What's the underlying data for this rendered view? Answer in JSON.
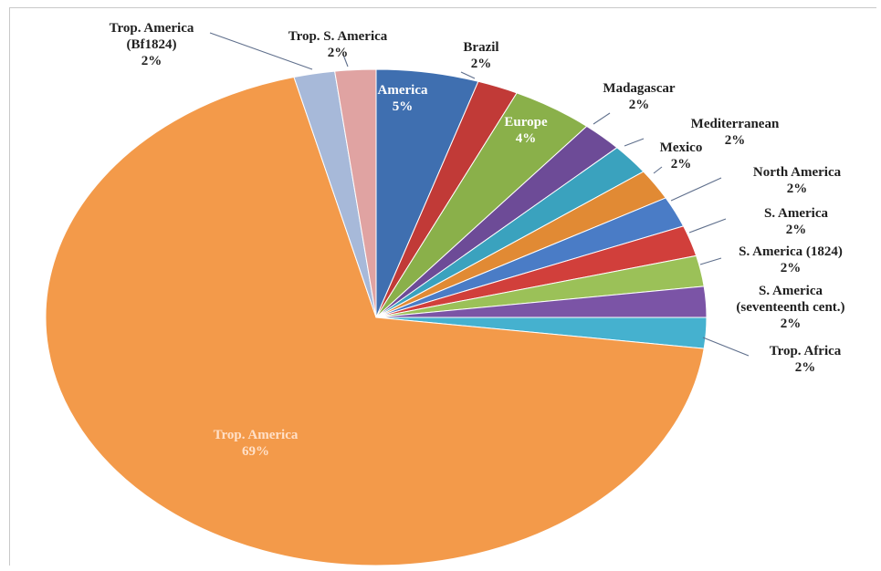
{
  "chart_data": {
    "type": "pie",
    "title": "",
    "slices": [
      {
        "label": "America",
        "value": 5,
        "display": "5%",
        "color": "#3f6fb0",
        "label_lines": [
          "America",
          "5%"
        ],
        "label_inside": true
      },
      {
        "label": "Brazil",
        "value": 2,
        "display": "2%",
        "color": "#c13a37",
        "label_lines": [
          "Brazil",
          "2%"
        ]
      },
      {
        "label": "Europe",
        "value": 4,
        "display": "4%",
        "color": "#8ab04a",
        "label_lines": [
          "Europe",
          "4%"
        ],
        "label_inside": true
      },
      {
        "label": "Madagascar",
        "value": 2,
        "display": "2%",
        "color": "#6d4b97",
        "label_lines": [
          "Madagascar",
          "2%"
        ]
      },
      {
        "label": "Mediterranean",
        "value": 2,
        "display": "2%",
        "color": "#3aa2be",
        "label_lines": [
          "Mediterranean",
          "2%"
        ]
      },
      {
        "label": "Mexico",
        "value": 2,
        "display": "2%",
        "color": "#e18a34",
        "label_lines": [
          "Mexico",
          "2%"
        ]
      },
      {
        "label": "North America",
        "value": 2,
        "display": "2%",
        "color": "#4a7cc6",
        "label_lines": [
          "North America",
          "2%"
        ]
      },
      {
        "label": "S. America",
        "value": 2,
        "display": "2%",
        "color": "#d13f3b",
        "label_lines": [
          "S. America",
          "2%"
        ]
      },
      {
        "label": "S. America (1824)",
        "value": 2,
        "display": "2%",
        "color": "#9bc158",
        "label_lines": [
          "S. America (1824)",
          "2%"
        ]
      },
      {
        "label": "S. America (seventeenth cent.)",
        "value": 2,
        "display": "2%",
        "color": "#7b54a6",
        "label_lines": [
          "S. America",
          "(seventeenth cent.)",
          "2%"
        ]
      },
      {
        "label": "Trop. Africa",
        "value": 2,
        "display": "2%",
        "color": "#45b1cf",
        "label_lines": [
          "Trop. Africa",
          "2%"
        ]
      },
      {
        "label": "Trop. America",
        "value": 69,
        "display": "69%",
        "color": "#f39a4a",
        "label_lines": [
          "Trop. America",
          "69%"
        ],
        "label_inside": true
      },
      {
        "label": "Trop. America (Bf1824)",
        "value": 2,
        "display": "2%",
        "color": "#a7b9d9",
        "label_lines": [
          "Trop. America",
          "(Bf1824)",
          "2%"
        ]
      },
      {
        "label": "Trop. S. America",
        "value": 2,
        "display": "2%",
        "color": "#e0a3a2",
        "label_lines": [
          "Trop. S. America",
          "2%"
        ]
      }
    ]
  }
}
